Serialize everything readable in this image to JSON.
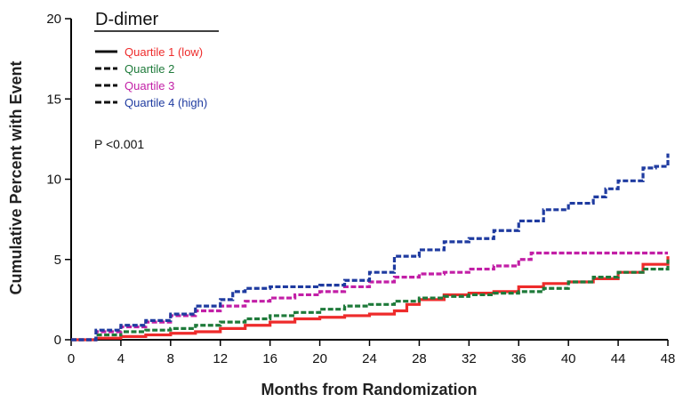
{
  "chart_data": {
    "type": "line",
    "title": "D-dimer",
    "xlabel": "Months from Randomization",
    "ylabel": "Cumulative Percent with Event",
    "xlim": [
      0,
      48
    ],
    "ylim": [
      0,
      20
    ],
    "xticks": [
      0,
      4,
      8,
      12,
      16,
      20,
      24,
      28,
      32,
      36,
      40,
      44,
      48
    ],
    "yticks": [
      0,
      5,
      10,
      15,
      20
    ],
    "grid": false,
    "legend_position": "top-left",
    "annotation": "P <0.001",
    "series": [
      {
        "name": "Quartile 1 (low)",
        "color": "#ee2b2b",
        "dash": "solid",
        "x": [
          0,
          2,
          4,
          6,
          8,
          10,
          12,
          14,
          16,
          18,
          20,
          22,
          24,
          26,
          27,
          28,
          30,
          32,
          34,
          36,
          38,
          40,
          42,
          44,
          46,
          48
        ],
        "y": [
          0,
          0.1,
          0.2,
          0.3,
          0.4,
          0.5,
          0.7,
          0.9,
          1.1,
          1.3,
          1.4,
          1.5,
          1.6,
          1.8,
          2.2,
          2.5,
          2.8,
          2.9,
          3.0,
          3.3,
          3.5,
          3.6,
          3.8,
          4.2,
          4.7,
          5.2
        ]
      },
      {
        "name": "Quartile 2",
        "color": "#1e7a3a",
        "dash": "dashed",
        "x": [
          0,
          2,
          4,
          6,
          8,
          10,
          12,
          14,
          16,
          18,
          20,
          22,
          24,
          26,
          28,
          30,
          32,
          34,
          36,
          38,
          40,
          42,
          44,
          46,
          48
        ],
        "y": [
          0,
          0.3,
          0.5,
          0.6,
          0.7,
          0.9,
          1.1,
          1.3,
          1.5,
          1.7,
          1.9,
          2.1,
          2.2,
          2.4,
          2.6,
          2.7,
          2.8,
          2.9,
          3.0,
          3.2,
          3.6,
          3.9,
          4.2,
          4.4,
          5.0
        ]
      },
      {
        "name": "Quartile 3",
        "color": "#c21fa6",
        "dash": "dashed",
        "x": [
          0,
          2,
          4,
          6,
          8,
          10,
          12,
          14,
          16,
          18,
          20,
          22,
          24,
          26,
          28,
          30,
          32,
          34,
          36,
          37,
          38,
          40,
          42,
          44,
          46,
          48
        ],
        "y": [
          0,
          0.5,
          0.8,
          1.1,
          1.5,
          1.8,
          2.1,
          2.4,
          2.6,
          2.8,
          3.0,
          3.3,
          3.6,
          3.9,
          4.1,
          4.2,
          4.4,
          4.6,
          5.0,
          5.4,
          5.4,
          5.4,
          5.4,
          5.4,
          5.4,
          5.4
        ]
      },
      {
        "name": "Quartile 4 (high)",
        "color": "#1f3ba0",
        "dash": "dashed",
        "x": [
          0,
          2,
          4,
          6,
          8,
          10,
          12,
          13,
          14,
          16,
          18,
          20,
          22,
          24,
          26,
          28,
          30,
          32,
          34,
          36,
          38,
          40,
          42,
          43,
          44,
          46,
          47,
          48
        ],
        "y": [
          0,
          0.6,
          0.9,
          1.2,
          1.6,
          2.1,
          2.5,
          3.0,
          3.2,
          3.3,
          3.3,
          3.4,
          3.7,
          4.2,
          5.2,
          5.6,
          6.1,
          6.3,
          6.8,
          7.4,
          8.1,
          8.5,
          8.9,
          9.4,
          9.9,
          10.7,
          10.8,
          11.6
        ]
      }
    ]
  }
}
